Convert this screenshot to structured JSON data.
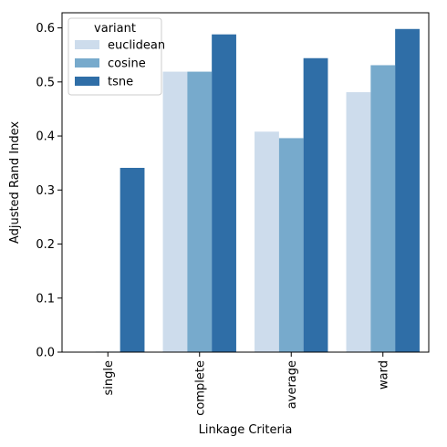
{
  "chart_data": {
    "type": "bar",
    "xlabel": "Linkage Criteria",
    "ylabel": "Adjusted Rand Index",
    "categories": [
      "single",
      "complete",
      "average",
      "ward"
    ],
    "ylim": [
      0,
      0.628
    ],
    "yticks": [
      "0.0",
      "0.1",
      "0.2",
      "0.3",
      "0.4",
      "0.5",
      "0.6"
    ],
    "grid": false,
    "legend": {
      "title": "variant",
      "placement": "top-left"
    },
    "series": [
      {
        "name": "euclidean",
        "color": "#cddcec",
        "values": [
          0.0,
          0.519,
          0.408,
          0.481
        ]
      },
      {
        "name": "cosine",
        "color": "#77aacc",
        "values": [
          0.001,
          0.519,
          0.396,
          0.531
        ]
      },
      {
        "name": "tsne",
        "color": "#2f6ea7",
        "values": [
          0.341,
          0.588,
          0.544,
          0.598
        ]
      }
    ]
  }
}
